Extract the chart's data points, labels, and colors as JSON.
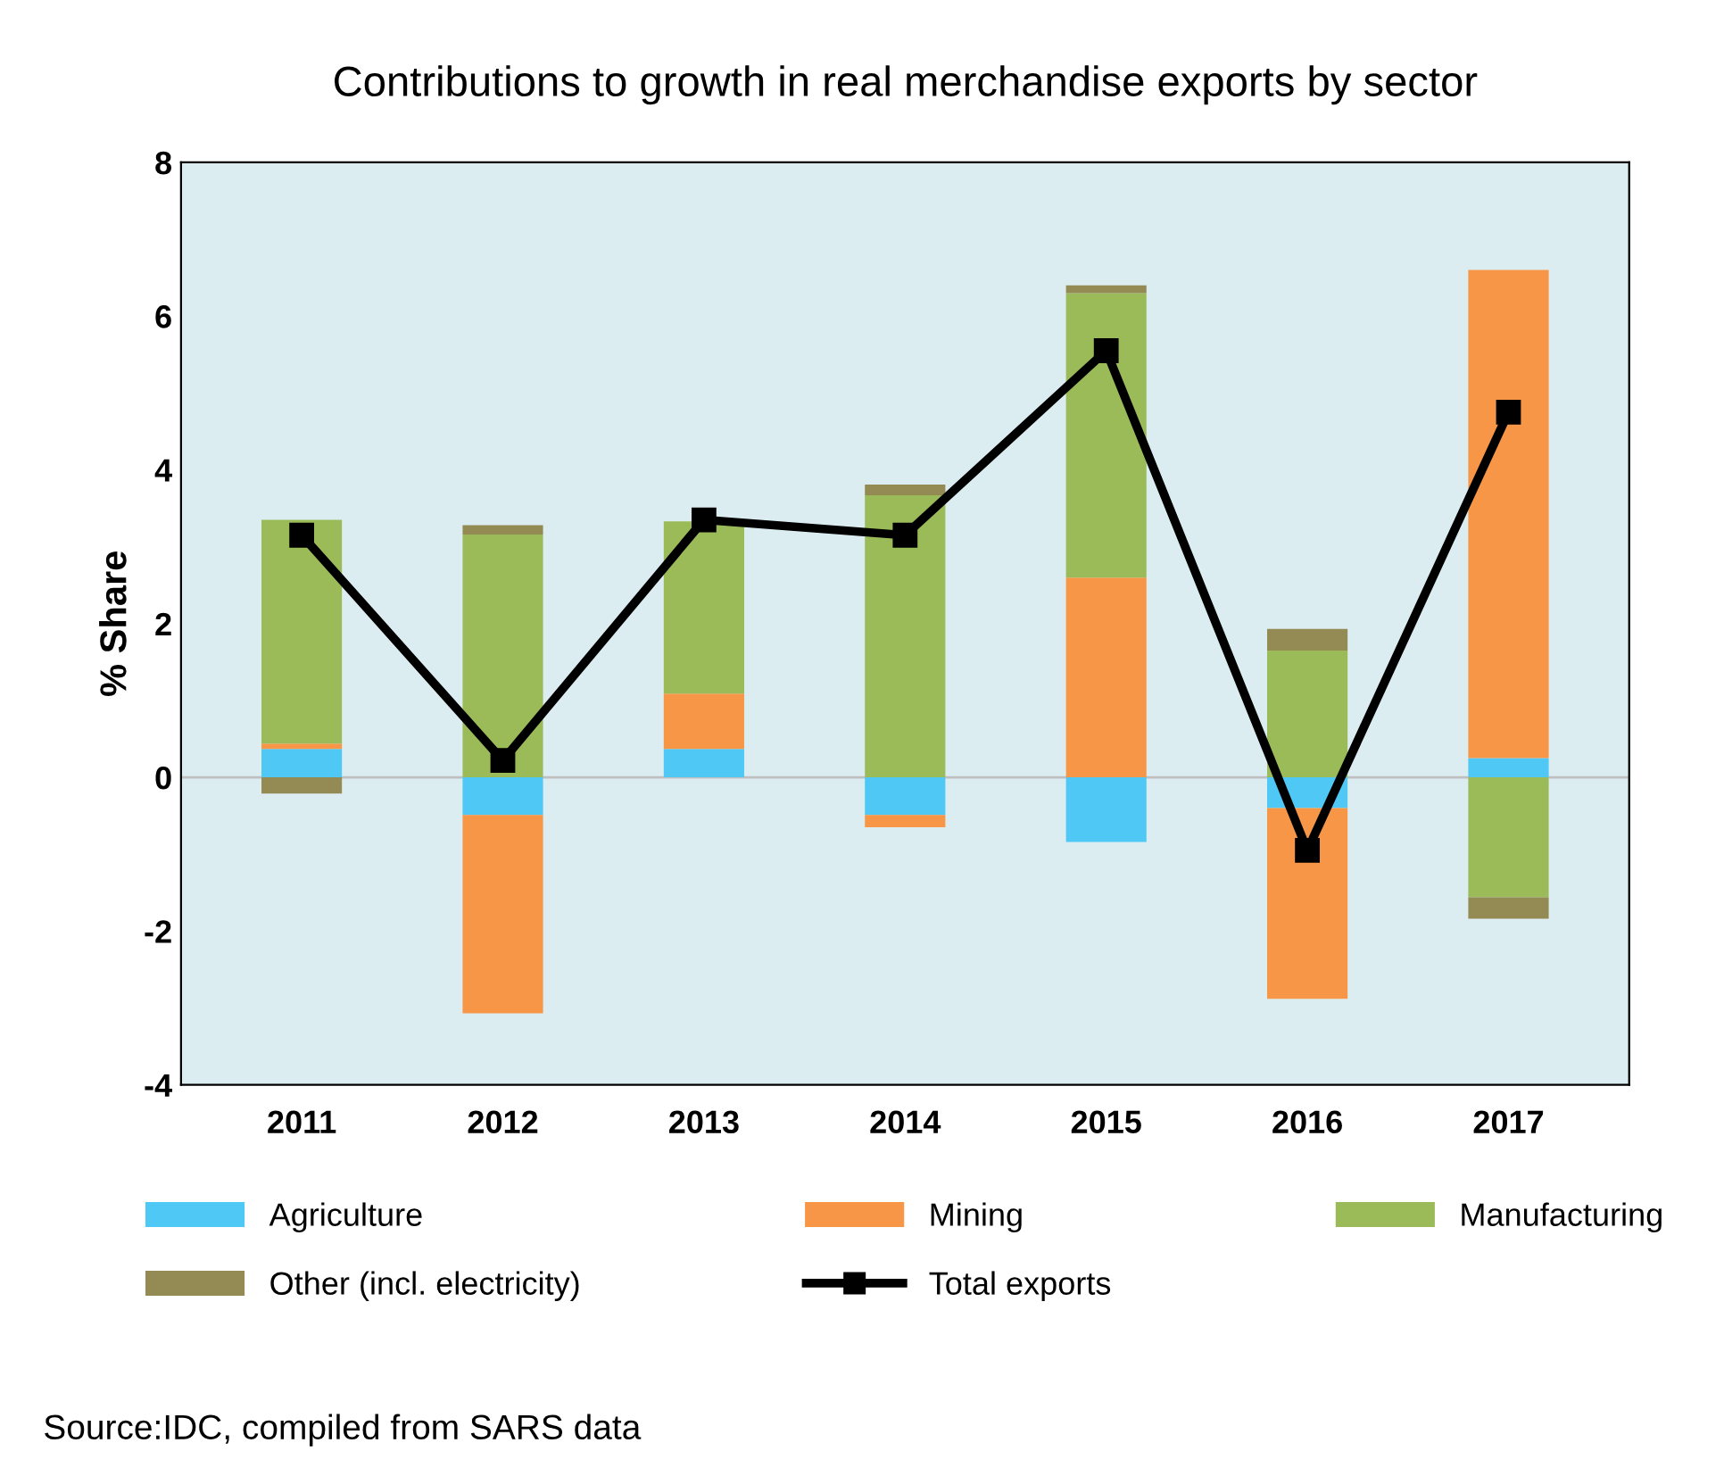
{
  "chart_data": {
    "type": "bar",
    "stacked": true,
    "title": "Contributions to growth in real merchandise exports by sector",
    "ylabel": "% Share",
    "categories": [
      "2011",
      "2012",
      "2013",
      "2014",
      "2015",
      "2016",
      "2017"
    ],
    "series": [
      {
        "name": "Agriculture",
        "color": "#4fc8f5",
        "values": [
          0.37,
          -0.49,
          0.37,
          -0.49,
          -0.84,
          -0.4,
          0.25
        ]
      },
      {
        "name": "Mining",
        "color": "#f79646",
        "values": [
          0.07,
          -2.58,
          0.72,
          -0.16,
          2.6,
          -2.48,
          6.35
        ]
      },
      {
        "name": "Manufacturing",
        "color": "#9bbb59",
        "values": [
          2.91,
          3.16,
          2.24,
          3.67,
          3.7,
          1.65,
          -1.56
        ]
      },
      {
        "name": "Other (incl. electricity)",
        "color": "#948a54",
        "values": [
          -0.21,
          0.12,
          null,
          0.14,
          0.1,
          0.28,
          -0.28
        ]
      },
      {
        "name": "Total exports",
        "type": "line",
        "color": "#000000",
        "marker": "square",
        "values": [
          3.15,
          0.22,
          3.35,
          3.15,
          5.55,
          -0.95,
          4.75
        ]
      }
    ],
    "ylim": [
      -4,
      8
    ],
    "yticks": [
      -4,
      -2,
      0,
      2,
      4,
      6,
      8
    ],
    "grid": false,
    "legend": "bottom",
    "ref_lines": [
      {
        "axis": "y",
        "value": 0,
        "color": "#bfbfbf"
      }
    ],
    "annotations": [
      "Source:IDC, compiled from SARS data"
    ]
  }
}
